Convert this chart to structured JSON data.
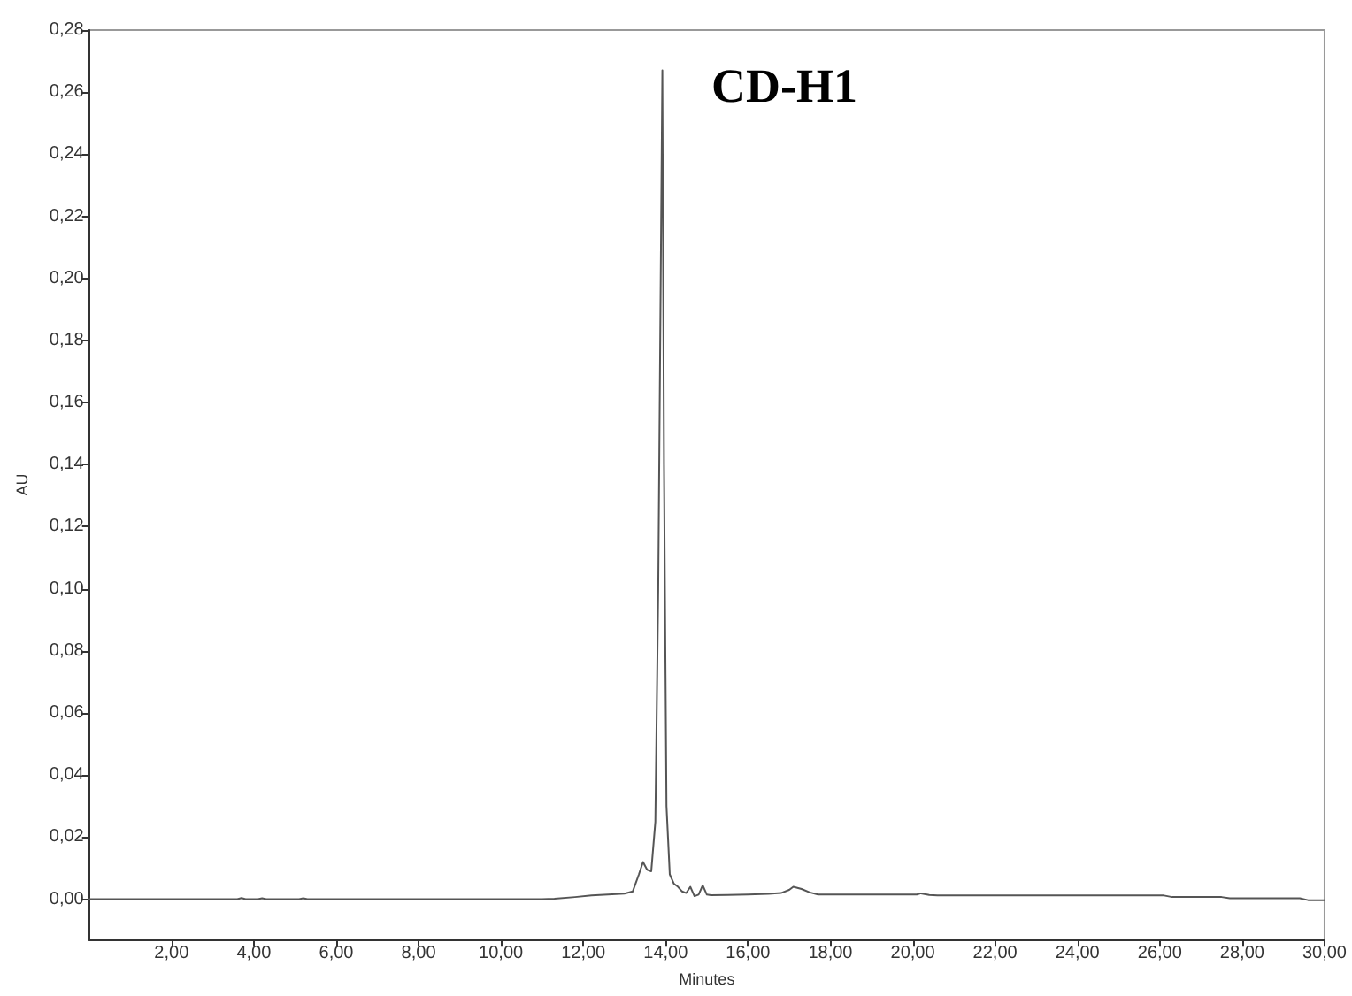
{
  "chart_data": {
    "type": "line",
    "xlabel": "Minutes",
    "ylabel": "AU",
    "annotations": [
      "CD-H1"
    ],
    "x": [
      0,
      1,
      2,
      3,
      3.6,
      3.7,
      3.8,
      4.1,
      4.2,
      4.3,
      5.1,
      5.2,
      5.3,
      6,
      7,
      8,
      9,
      10,
      11,
      11.3,
      11.8,
      12.2,
      12.6,
      13,
      13.2,
      13.35,
      13.45,
      13.55,
      13.65,
      13.75,
      13.82,
      13.88,
      13.92,
      13.96,
      14.02,
      14.1,
      14.2,
      14.3,
      14.4,
      14.5,
      14.6,
      14.7,
      14.8,
      14.9,
      15.0,
      15.1,
      15.5,
      16,
      16.5,
      16.8,
      17.0,
      17.1,
      17.3,
      17.5,
      17.7,
      18.5,
      19.5,
      20.1,
      20.2,
      20.4,
      20.6,
      22,
      24,
      26.1,
      26.3,
      27.5,
      27.7,
      29.4,
      29.6,
      30
    ],
    "series": [
      {
        "color": "#555555",
        "values": [
          0,
          0,
          0,
          0,
          0,
          0.0004,
          0,
          0,
          0.0003,
          0,
          0,
          0.0003,
          0,
          0,
          0,
          0,
          0,
          0,
          0,
          0.0002,
          0.0007,
          0.0012,
          0.0015,
          0.0018,
          0.0025,
          0.008,
          0.012,
          0.0095,
          0.009,
          0.025,
          0.1,
          0.2,
          0.267,
          0.14,
          0.03,
          0.008,
          0.005,
          0.004,
          0.0025,
          0.002,
          0.004,
          0.001,
          0.0015,
          0.0045,
          0.0015,
          0.0013,
          0.0014,
          0.0015,
          0.0017,
          0.002,
          0.003,
          0.004,
          0.0033,
          0.0022,
          0.0015,
          0.0015,
          0.0015,
          0.0015,
          0.0019,
          0.0014,
          0.0012,
          0.0012,
          0.0012,
          0.0012,
          0.0007,
          0.0007,
          0.0003,
          0.0003,
          -0.0003,
          -0.0003
        ]
      }
    ],
    "xlim": [
      0,
      30
    ],
    "xticks": [
      {
        "value": 2,
        "label": "2,00"
      },
      {
        "value": 4,
        "label": "4,00"
      },
      {
        "value": 6,
        "label": "6,00"
      },
      {
        "value": 8,
        "label": "8,00"
      },
      {
        "value": 10,
        "label": "10,00"
      },
      {
        "value": 12,
        "label": "12,00"
      },
      {
        "value": 14,
        "label": "14,00"
      },
      {
        "value": 16,
        "label": "16,00"
      },
      {
        "value": 18,
        "label": "18,00"
      },
      {
        "value": 20,
        "label": "20,00"
      },
      {
        "value": 22,
        "label": "22,00"
      },
      {
        "value": 24,
        "label": "24,00"
      },
      {
        "value": 26,
        "label": "26,00"
      },
      {
        "value": 28,
        "label": "28,00"
      },
      {
        "value": 30,
        "label": "30,00"
      }
    ],
    "ylim": [
      -0.013,
      0.28
    ],
    "yticks": [
      {
        "value": 0,
        "label": "0,00"
      },
      {
        "value": 0.02,
        "label": "0,02"
      },
      {
        "value": 0.04,
        "label": "0,04"
      },
      {
        "value": 0.06,
        "label": "0,06"
      },
      {
        "value": 0.08,
        "label": "0,08"
      },
      {
        "value": 0.1,
        "label": "0,10"
      },
      {
        "value": 0.12,
        "label": "0,12"
      },
      {
        "value": 0.14,
        "label": "0,14"
      },
      {
        "value": 0.16,
        "label": "0,16"
      },
      {
        "value": 0.18,
        "label": "0,18"
      },
      {
        "value": 0.2,
        "label": "0,20"
      },
      {
        "value": 0.22,
        "label": "0,22"
      },
      {
        "value": 0.24,
        "label": "0,24"
      },
      {
        "value": 0.26,
        "label": "0,26"
      },
      {
        "value": 0.28,
        "label": "0,28"
      }
    ],
    "grid": false,
    "marker": "none",
    "line_style": "solid"
  }
}
